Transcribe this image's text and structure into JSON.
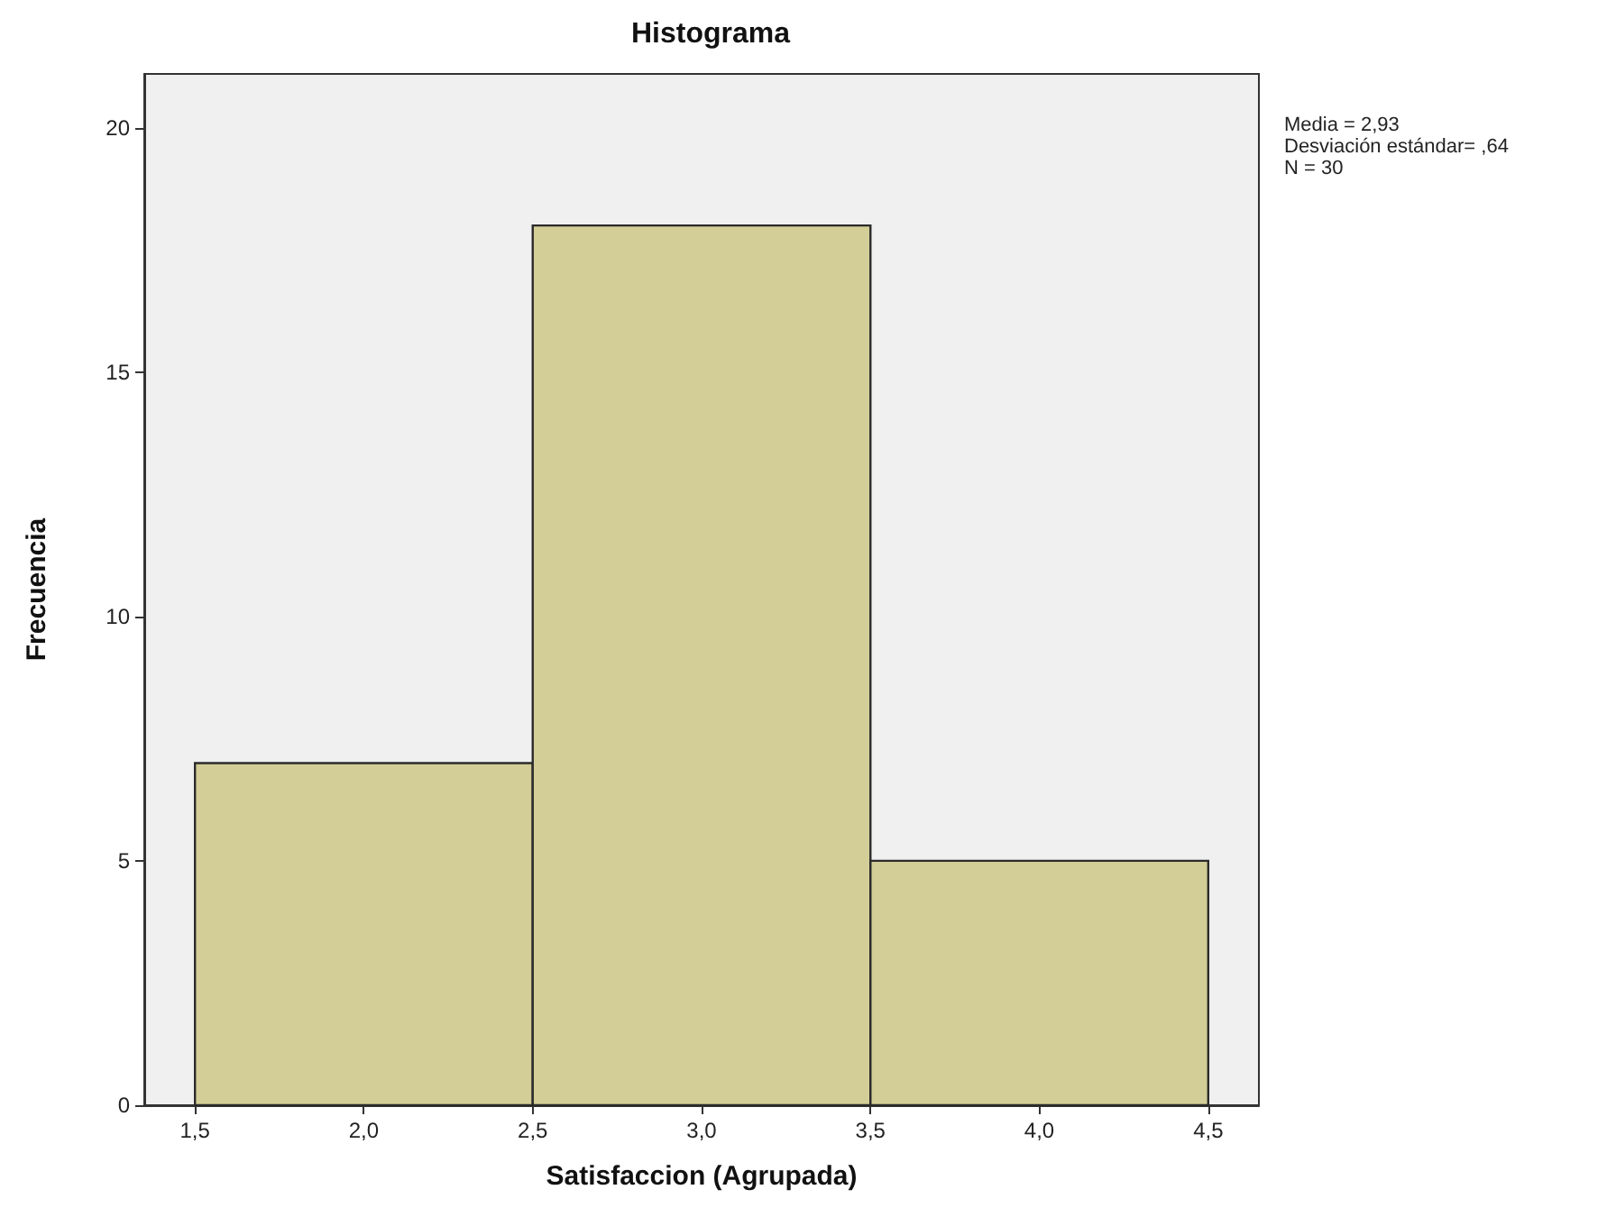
{
  "chart_data": {
    "type": "histogram",
    "title": "Histograma",
    "xlabel": "Satisfaccion (Agrupada)",
    "ylabel": "Frecuencia",
    "bins": [
      1.5,
      2.5,
      3.5,
      4.5
    ],
    "values": [
      7,
      18,
      5
    ],
    "color": "#d3ce97",
    "xlim": [
      1.35,
      4.65
    ],
    "xticks": [
      {
        "value": 1.5,
        "label": "1,5"
      },
      {
        "value": 2,
        "label": "2,0"
      },
      {
        "value": 2.5,
        "label": "2,5"
      },
      {
        "value": 3,
        "label": "3,0"
      },
      {
        "value": 3.5,
        "label": "3,5"
      },
      {
        "value": 4,
        "label": "4,0"
      },
      {
        "value": 4.5,
        "label": "4,5"
      }
    ],
    "ylim": [
      0,
      21.1
    ],
    "yticks": [
      0,
      5,
      10,
      15,
      20
    ],
    "grid": false,
    "annotations": [
      "Media = 2,93",
      "Desviación estándar= ,64",
      "N = 30"
    ]
  }
}
